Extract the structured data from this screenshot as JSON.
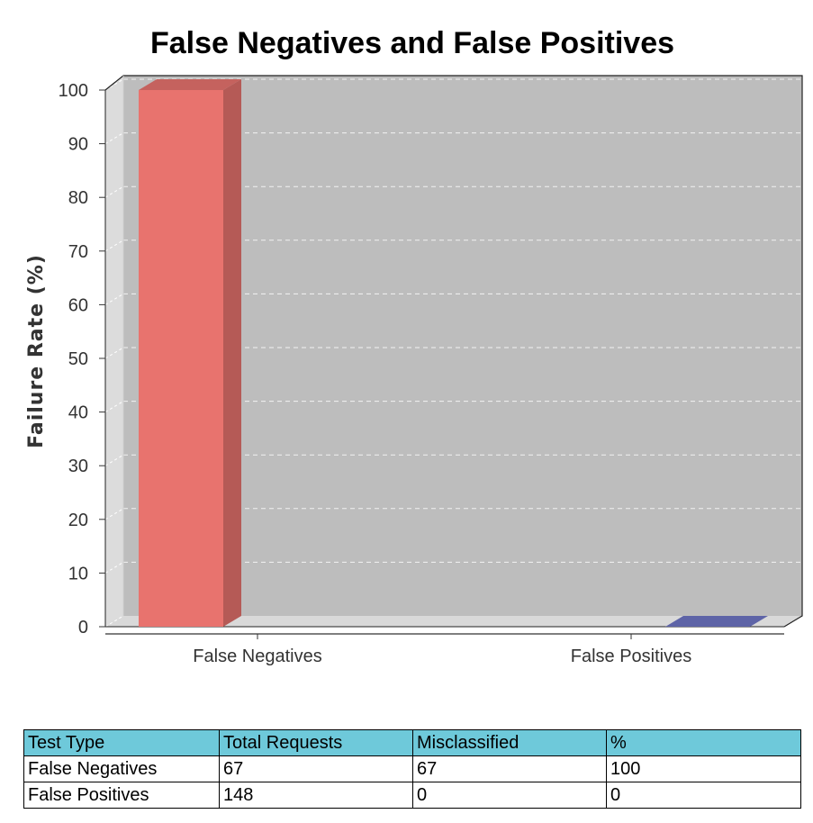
{
  "chart_data": {
    "type": "bar",
    "title": "False Negatives and False Positives",
    "ylabel": "Failure Rate (%)",
    "xlabel": "",
    "categories": [
      "False Negatives",
      "False Positives"
    ],
    "values": [
      100,
      0
    ],
    "colors": [
      "#e8736e",
      "#6f76c4"
    ],
    "ylim": [
      0,
      100
    ],
    "yticks": [
      0,
      10,
      20,
      30,
      40,
      50,
      60,
      70,
      80,
      90,
      100
    ],
    "grid": true,
    "three_d": true,
    "background": "#bdbdbd"
  },
  "table": {
    "headers": [
      "Test Type",
      "Total Requests",
      "Misclassified",
      "%"
    ],
    "rows": [
      [
        "False Negatives",
        "67",
        "67",
        "100"
      ],
      [
        "False Positives",
        "148",
        "0",
        "0"
      ]
    ],
    "header_color": "#6ec9da"
  }
}
